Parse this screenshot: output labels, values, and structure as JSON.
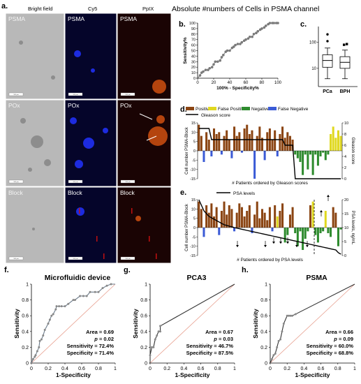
{
  "panel_letters": {
    "a": "a.",
    "b": "b.",
    "c": "c.",
    "d": "d.",
    "e": "e.",
    "f": "f.",
    "g": "g.",
    "h": "h."
  },
  "micrograph": {
    "column_headers": [
      "Bright field",
      "Cy5",
      "PpIX"
    ],
    "row_labels": [
      "PSMA",
      "POx",
      "Block"
    ],
    "scale_bar_label": "100 μm",
    "colors": {
      "bright": "#b8b8b8",
      "cy5": "#05052a",
      "ppix": "#1a0404",
      "cy5_spot": "#2233ff",
      "ppix_spot": "#d05010"
    }
  },
  "header": {
    "title": "Absolute #numbers of Cells in PSMA channel"
  },
  "chart_data": [
    {
      "id": "b",
      "type": "line",
      "xlabel": "100% - Specificity%",
      "ylabel": "Sensitivity%",
      "xlim": [
        0,
        100
      ],
      "ylim": [
        0,
        100
      ],
      "xticks": [
        0,
        20,
        40,
        60,
        80,
        100
      ],
      "yticks": [
        0,
        10,
        20,
        30,
        40,
        50,
        60,
        70,
        80,
        90,
        100
      ],
      "x": [
        0,
        3,
        5,
        7,
        10,
        13,
        15,
        18,
        20,
        22,
        25,
        28,
        30,
        32,
        35,
        37,
        40,
        43,
        45,
        47,
        50,
        53,
        55,
        58,
        60,
        63,
        65,
        68,
        70,
        73,
        75,
        78,
        80,
        83,
        85,
        88,
        90,
        93,
        95,
        98,
        100
      ],
      "y": [
        0,
        5,
        10,
        12,
        15,
        15,
        18,
        20,
        25,
        30,
        30,
        32,
        38,
        42,
        48,
        50,
        50,
        55,
        57,
        60,
        62,
        62,
        65,
        68,
        70,
        72,
        75,
        75,
        80,
        82,
        85,
        88,
        90,
        92,
        95,
        98,
        100,
        100,
        100,
        100,
        100
      ],
      "color": "#7a7a7a"
    },
    {
      "id": "c",
      "type": "box",
      "scale": "log",
      "categories": [
        "PCa",
        "BPH"
      ],
      "yticks": [
        10,
        100
      ],
      "ylim": [
        2,
        400
      ],
      "boxes": [
        {
          "name": "PCa",
          "min": 4,
          "q1": 11,
          "median": 20,
          "q3": 33,
          "max": 60,
          "outliers": [
            110,
            200
          ]
        },
        {
          "name": "BPH",
          "min": 4,
          "q1": 10,
          "median": 17,
          "q3": 28,
          "max": 50,
          "outliers": [
            80,
            85
          ]
        }
      ]
    },
    {
      "id": "d",
      "type": "bar",
      "legend": [
        {
          "name": "Positive",
          "color": "#8b4513"
        },
        {
          "name": "False Positive",
          "color": "#e0d820"
        },
        {
          "name": "Negative",
          "color": "#2e8b2e"
        },
        {
          "name": "False Negative",
          "color": "#3b5bd6"
        },
        {
          "name": "Gleason score",
          "color": "#000000"
        }
      ],
      "ylabel": "Cell number PSMA-Block",
      "y2label": "Gleason score",
      "xlabel": "# Patients ordered by Gleason scores",
      "ylim": [
        -15,
        15
      ],
      "yticks": [
        -15,
        -10,
        -5,
        0,
        5,
        10,
        15
      ],
      "y2lim": [
        0,
        10
      ],
      "y2ticks": [
        0,
        2,
        4,
        6,
        8,
        10
      ],
      "values": [
        14,
        8,
        -6,
        10,
        6,
        -3,
        12,
        9,
        10,
        -2,
        8,
        11,
        6,
        -4,
        13,
        8,
        10,
        -1,
        12,
        14,
        9,
        11,
        -15,
        8,
        13,
        7,
        -5,
        10,
        12,
        6,
        11,
        -3,
        9,
        13,
        7,
        10,
        8,
        6,
        -2,
        -4,
        -6,
        -13,
        -2,
        -10,
        -2,
        -13,
        -2,
        -8,
        -3,
        -1,
        -5,
        -2,
        9,
        13,
        7,
        11,
        8
      ],
      "categories_status": [
        "P",
        "P",
        "FN",
        "P",
        "P",
        "FN",
        "P",
        "P",
        "P",
        "FN",
        "P",
        "P",
        "P",
        "FN",
        "P",
        "P",
        "P",
        "FN",
        "P",
        "P",
        "P",
        "P",
        "FN",
        "P",
        "P",
        "P",
        "FN",
        "P",
        "P",
        "P",
        "P",
        "FN",
        "P",
        "P",
        "P",
        "P",
        "P",
        "P",
        "N",
        "N",
        "N",
        "N",
        "N",
        "N",
        "N",
        "N",
        "N",
        "N",
        "N",
        "N",
        "N",
        "N",
        "FP",
        "FP",
        "FP",
        "FP",
        "FP"
      ],
      "gleason": [
        9,
        9,
        9,
        9,
        9,
        7,
        7,
        7,
        7,
        7,
        7,
        7,
        7,
        7,
        7,
        7,
        7,
        7,
        7,
        7,
        7,
        7,
        7,
        7,
        7,
        7,
        7,
        7,
        7,
        7,
        7,
        7,
        7,
        7,
        6,
        6,
        6,
        6,
        0,
        0,
        0,
        0,
        0,
        0,
        0,
        0,
        0,
        0,
        0,
        0,
        0,
        0,
        0,
        0,
        0,
        0,
        0
      ]
    },
    {
      "id": "e",
      "type": "bar",
      "legend": [
        {
          "name": "PSA levels",
          "color": "#000000"
        }
      ],
      "ylabel": "Cell number PSMA-Block",
      "y2label": "PSA levels, ng/mL",
      "xlabel": "# Patients ordered by PSA levels",
      "ylim": [
        -15,
        15
      ],
      "yticks": [
        -15,
        -10,
        -5,
        0,
        5,
        10,
        15
      ],
      "y2lim": [
        0,
        20
      ],
      "y2ticks": [
        0,
        5,
        10,
        15,
        20
      ],
      "values": [
        14,
        10,
        -5,
        12,
        8,
        13,
        6,
        11,
        -4,
        9,
        14,
        7,
        12,
        10,
        -2,
        8,
        13,
        11,
        6,
        9,
        12,
        -3,
        7,
        14,
        5,
        10,
        8,
        4,
        11,
        -2,
        12,
        6,
        9,
        13,
        -8,
        -4,
        7,
        11,
        -3,
        -10,
        -2,
        -12,
        -6,
        -2,
        12,
        14,
        -4,
        -8,
        -3,
        -2,
        9,
        -3,
        -5,
        11,
        8,
        -10,
        -1
      ],
      "categories_status": [
        "P",
        "P",
        "FN",
        "P",
        "P",
        "P",
        "P",
        "P",
        "FN",
        "P",
        "P",
        "P",
        "P",
        "P",
        "FN",
        "P",
        "P",
        "P",
        "P",
        "P",
        "P",
        "FN",
        "P",
        "P",
        "P",
        "P",
        "P",
        "P",
        "P",
        "FN",
        "P",
        "FP",
        "P",
        "P",
        "N",
        "N",
        "P",
        "P",
        "N",
        "N",
        "N",
        "N",
        "N",
        "N",
        "P",
        "FP",
        "N",
        "N",
        "N",
        "N",
        "FP",
        "N",
        "N",
        "P",
        "P",
        "N",
        "N"
      ],
      "psa": [
        20,
        18,
        16,
        15,
        14,
        13.5,
        13,
        12.5,
        12,
        11.5,
        11,
        10.8,
        10.5,
        10.3,
        10,
        9.8,
        9.6,
        9.4,
        9.2,
        9,
        8.8,
        8.6,
        8.4,
        8.2,
        8,
        7.8,
        7.6,
        7.4,
        7.2,
        7,
        6.8,
        6.6,
        6.4,
        6.2,
        6,
        5.8,
        5.6,
        5.4,
        5.2,
        5,
        4.8,
        4.6,
        4.4,
        4.2,
        4,
        3.8,
        3.6,
        3.4,
        3.2,
        3,
        2.8,
        2.6,
        2.4,
        2.2,
        2,
        1,
        0.5
      ]
    },
    {
      "id": "f",
      "type": "line",
      "title": "Microfluidic device",
      "xlabel": "1-Specificity",
      "ylabel": "Sensitivity",
      "xlim": [
        0,
        1
      ],
      "ylim": [
        0,
        1
      ],
      "xticks": [
        "0",
        "0.2",
        "0.4",
        "0.6",
        "0.8",
        "1"
      ],
      "yticks": [
        "0",
        "0.2",
        "0.4",
        "0.6",
        "0.8",
        "1"
      ],
      "x": [
        0,
        0.02,
        0.04,
        0.05,
        0.07,
        0.09,
        0.1,
        0.12,
        0.14,
        0.16,
        0.2,
        0.22,
        0.24,
        0.26,
        0.29,
        0.3,
        0.33,
        0.36,
        0.4,
        0.44,
        0.5,
        0.52,
        0.58,
        0.62,
        0.66,
        0.7,
        0.76,
        0.8,
        0.85,
        0.9,
        0.95,
        1
      ],
      "y": [
        0,
        0.05,
        0.08,
        0.1,
        0.15,
        0.2,
        0.28,
        0.3,
        0.35,
        0.42,
        0.5,
        0.55,
        0.6,
        0.62,
        0.68,
        0.72,
        0.72,
        0.72,
        0.72,
        0.75,
        0.8,
        0.8,
        0.85,
        0.85,
        0.85,
        0.9,
        0.9,
        0.9,
        0.95,
        0.98,
        1,
        1
      ],
      "stats": {
        "area": "Area = 0.69",
        "p": "= 0.02",
        "sensitivity": "Sensitivity = 72.4%",
        "specificity": "Specificity = 71.4%"
      }
    },
    {
      "id": "g",
      "type": "line",
      "title": "PCA3",
      "xlabel": "1-Specificity",
      "ylabel": "Sensitivity",
      "xlim": [
        0,
        1
      ],
      "ylim": [
        0,
        1
      ],
      "xticks": [
        "0",
        "0.2",
        "0.4",
        "0.6",
        "0.8",
        "1"
      ],
      "yticks": [
        "0",
        "0.2",
        "0.4",
        "0.6",
        "0.8",
        "1"
      ],
      "x": [
        0,
        0,
        0.02,
        0.04,
        0.06,
        0.08,
        0.1,
        0.12,
        0.12,
        1
      ],
      "y": [
        0,
        0.1,
        0.2,
        0.2,
        0.3,
        0.35,
        0.4,
        0.4,
        0.47,
        1
      ],
      "stats": {
        "area": "Area = 0.67",
        "p": "= 0.03",
        "sensitivity": "Sensitivity = 46.7%",
        "specificity": "Specificity = 87.5%"
      }
    },
    {
      "id": "h",
      "type": "line",
      "title": "PSMA",
      "xlabel": "1-Specificity",
      "ylabel": "Sensitivity",
      "xlim": [
        0,
        1
      ],
      "ylim": [
        0,
        1
      ],
      "xticks": [
        "0",
        "0.2",
        "0.4",
        "0.6",
        "0.8",
        "1"
      ],
      "yticks": [
        "0",
        "0.2",
        "0.4",
        "0.6",
        "0.8",
        "1"
      ],
      "x": [
        0,
        0.02,
        0.04,
        0.06,
        0.08,
        0.1,
        0.12,
        0.14,
        0.16,
        0.2,
        0.22,
        0.24,
        0.26,
        0.3,
        1
      ],
      "y": [
        0,
        0.05,
        0.1,
        0.12,
        0.2,
        0.28,
        0.3,
        0.4,
        0.5,
        0.6,
        0.6,
        0.6,
        0.6,
        0.62,
        1
      ],
      "stats": {
        "area": "Area = 0.66",
        "p": "= 0.09",
        "sensitivity": "Sensitivity = 60.0%",
        "specificity": "Specificity = 68.8%"
      }
    }
  ]
}
